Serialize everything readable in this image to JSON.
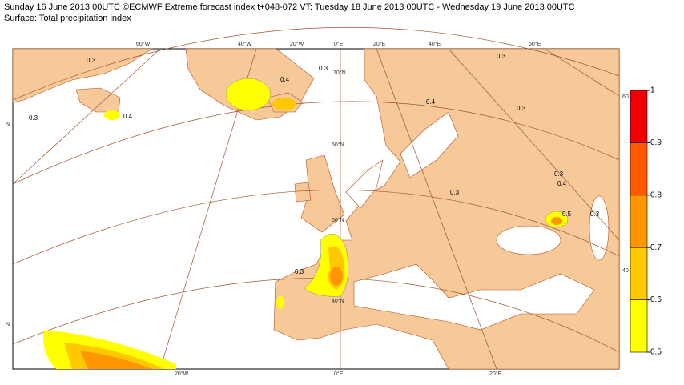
{
  "header": {
    "line1": "Sunday 16 June 2013 00UTC ©ECMWF Extreme forecast index t+048-072 VT: Tuesday 18 June 2013 00UTC - Wednesday 19 June 2013 00UTC",
    "line2": "Surface: Total precipitation index"
  },
  "legend": {
    "levels": [
      0.5,
      0.6,
      0.7,
      0.8,
      0.9,
      1
    ],
    "colors": [
      "#ffff00",
      "#ffc800",
      "#ff9600",
      "#ff5a00",
      "#f00000"
    ]
  },
  "graticule_labels": [
    "60°W",
    "40°W",
    "20°W",
    "0°E",
    "20°E",
    "40°E",
    "60°E",
    "20°W",
    "0°E",
    "20°E",
    "N",
    "N",
    "60",
    "40",
    "70°N",
    "60°N",
    "50°N",
    "40°N"
  ],
  "contour_labels": [
    "0.3",
    "0.3",
    "0.3",
    "0.3",
    "0.3",
    "0.3",
    "0.3",
    "0.3",
    "0.3",
    "0.4",
    "0.4",
    "0.4",
    "0.4",
    "0.5"
  ]
}
